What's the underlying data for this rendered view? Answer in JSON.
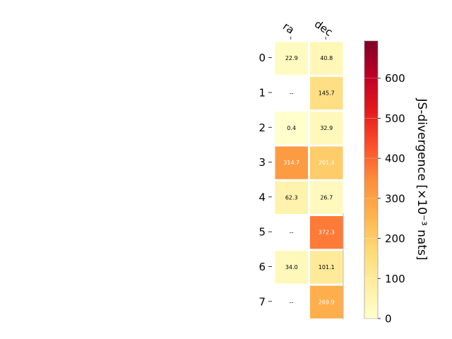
{
  "chart_data": {
    "type": "heatmap",
    "columns": [
      "ra",
      "dec"
    ],
    "rows": [
      "0",
      "1",
      "2",
      "3",
      "4",
      "5",
      "6",
      "7"
    ],
    "values": [
      [
        22.9,
        40.8
      ],
      [
        null,
        145.7
      ],
      [
        0.4,
        32.9
      ],
      [
        314.7,
        201.4
      ],
      [
        62.3,
        26.7
      ],
      [
        null,
        372.3
      ],
      [
        34.0,
        101.1
      ],
      [
        null,
        269.9
      ]
    ],
    "cell_labels": [
      [
        "22.9",
        "40.8"
      ],
      [
        "--",
        "145.7"
      ],
      [
        "0.4",
        "32.9"
      ],
      [
        "314.7",
        "201.4"
      ],
      [
        "62.3",
        "26.7"
      ],
      [
        "--",
        "372.3"
      ],
      [
        "34.0",
        "101.1"
      ],
      [
        "--",
        "269.9"
      ]
    ],
    "colorbar": {
      "label": "JS-divergence [×10⁻³ nats]",
      "ticks": [
        "0",
        "100",
        "200",
        "300",
        "400",
        "500",
        "600"
      ],
      "range": [
        0,
        693
      ],
      "colormap": "YlOrRd"
    }
  }
}
